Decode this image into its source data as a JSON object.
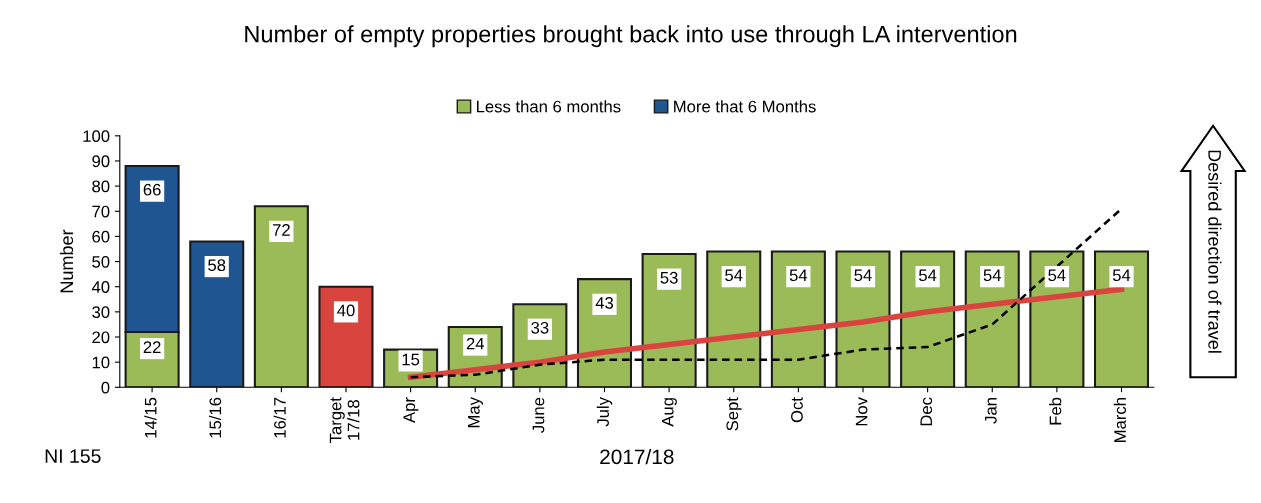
{
  "chart_data": {
    "type": "bar",
    "title": "Number of empty properties brought back into use through LA intervention",
    "xlabel": "2017/18",
    "ylabel": "Number",
    "categories": [
      "14/15",
      "15/16",
      "16/17",
      "Target\n17/18",
      "Apr",
      "May",
      "June",
      "July",
      "Aug",
      "Sept",
      "Oct",
      "Nov",
      "Dec",
      "Jan",
      "Feb",
      "March"
    ],
    "stacked": true,
    "series": [
      {
        "name": "Less than 6 months",
        "color": "#9bbb59",
        "values": [
          22,
          null,
          72,
          null,
          15,
          24,
          33,
          43,
          53,
          54,
          54,
          54,
          54,
          54,
          54,
          54
        ],
        "value_labels": [
          "22",
          null,
          "72",
          null,
          "15",
          "24",
          "33",
          "43",
          "53",
          "54",
          "54",
          "54",
          "54",
          "54",
          "54",
          "54"
        ]
      },
      {
        "name": "More that 6 Months",
        "color": "#1f5591",
        "values": [
          66,
          58,
          null,
          null,
          null,
          null,
          null,
          null,
          null,
          null,
          null,
          null,
          null,
          null,
          null,
          null
        ],
        "value_labels": [
          "66",
          "58",
          null,
          null,
          null,
          null,
          null,
          null,
          null,
          null,
          null,
          null,
          null,
          null,
          null,
          null
        ]
      },
      {
        "color": "#d9443f",
        "values": [
          null,
          null,
          null,
          40,
          null,
          null,
          null,
          null,
          null,
          null,
          null,
          null,
          null,
          null,
          null,
          null
        ],
        "value_labels": [
          null,
          null,
          null,
          "40",
          null,
          null,
          null,
          null,
          null,
          null,
          null,
          null,
          null,
          null,
          null,
          null
        ]
      },
      {
        "type": "line",
        "color": "#d9443f",
        "line_style": "solid",
        "values": [
          null,
          null,
          null,
          null,
          4,
          7,
          10,
          14,
          17,
          20,
          23,
          26,
          30,
          33,
          36,
          39
        ]
      },
      {
        "type": "line",
        "color": "#000000",
        "line_style": "dashed",
        "values": [
          null,
          null,
          null,
          null,
          4,
          5,
          9,
          11,
          11,
          11,
          11,
          15,
          16,
          25,
          48,
          71
        ]
      }
    ],
    "ylim": [
      0,
      100
    ],
    "yticks": [
      0,
      10,
      20,
      30,
      40,
      50,
      60,
      70,
      80,
      90,
      100
    ],
    "legend": "top",
    "grid": false,
    "annotations": [
      "NI 155",
      "Desired direction of travel"
    ]
  }
}
